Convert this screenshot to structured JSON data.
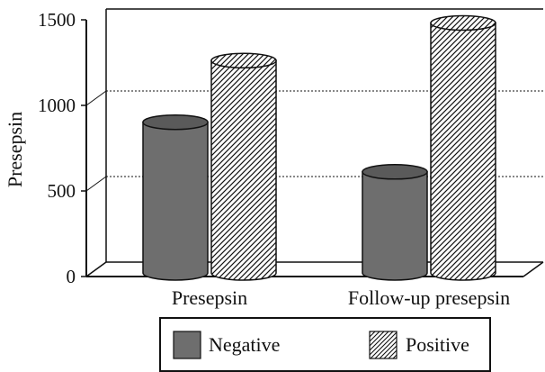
{
  "chart_data": {
    "type": "bar",
    "style": "3d-cylinder",
    "title": "",
    "xlabel": "",
    "ylabel": "Presepsin",
    "ylim": [
      0,
      1500
    ],
    "yticks": [
      0,
      500,
      1000,
      1500
    ],
    "grid": "dashed horizontal at 500 and 1000",
    "categories": [
      "Presepsin",
      "Follow-up presepsin"
    ],
    "series": [
      {
        "name": "Negative",
        "values": [
          870,
          580
        ],
        "color": "#6e6e6e",
        "pattern": "solid"
      },
      {
        "name": "Positive",
        "values": [
          1230,
          1450
        ],
        "color": "#ffffff",
        "pattern": "diagonal-hatch"
      }
    ],
    "legend": {
      "placement": "bottom-center"
    }
  }
}
